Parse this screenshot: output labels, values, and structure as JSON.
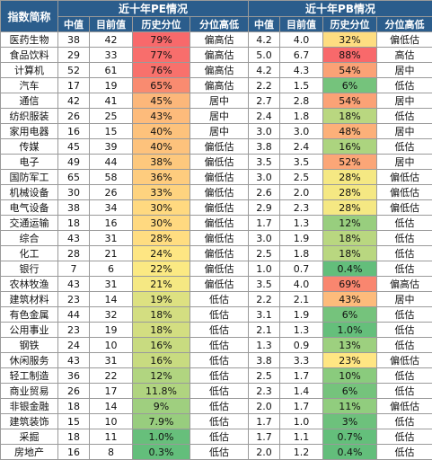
{
  "headers": {
    "index_name": "指数简称",
    "pe_group": "近十年PE情况",
    "pb_group": "近十年PB情况",
    "cols": [
      "中值",
      "目前值",
      "历史分位",
      "分位高低"
    ]
  },
  "colors": {
    "header_bg": "#2b5d8c",
    "header_text": "#ffffff",
    "high_pct": "#f8696b",
    "mid_pct": "#ffeb84",
    "low_pct": "#63be7b"
  },
  "rows": [
    {
      "name": "医药生物",
      "pe_mid": "38",
      "pe_cur": "42",
      "pe_pct": "79%",
      "pe_pct_bg": "#f8696b",
      "pe_lvl": "偏高估",
      "pb_mid": "4.2",
      "pb_cur": "4.0",
      "pb_pct": "32%",
      "pb_pct_bg": "#fedd81",
      "pb_lvl": "偏低估"
    },
    {
      "name": "食品饮料",
      "pe_mid": "29",
      "pe_cur": "33",
      "pe_pct": "77%",
      "pe_pct_bg": "#f86e6c",
      "pe_lvl": "偏高估",
      "pb_mid": "5.0",
      "pb_cur": "6.7",
      "pb_pct": "88%",
      "pb_pct_bg": "#f8696b",
      "pb_lvl": "高估"
    },
    {
      "name": "计算机",
      "pe_mid": "52",
      "pe_cur": "61",
      "pe_pct": "76%",
      "pe_pct_bg": "#f8716c",
      "pe_lvl": "偏高估",
      "pb_mid": "4.2",
      "pb_cur": "4.3",
      "pb_pct": "54%",
      "pb_pct_bg": "#fba276",
      "pb_lvl": "居中"
    },
    {
      "name": "汽车",
      "pe_mid": "17",
      "pe_cur": "19",
      "pe_pct": "65%",
      "pe_pct_bg": "#f98b70",
      "pe_lvl": "偏高估",
      "pb_mid": "2.2",
      "pb_cur": "1.5",
      "pb_pct": "6%",
      "pb_pct_bg": "#75c37c",
      "pb_lvl": "低估"
    },
    {
      "name": "通信",
      "pe_mid": "42",
      "pe_cur": "41",
      "pe_pct": "45%",
      "pe_pct_bg": "#fcb77a",
      "pe_lvl": "居中",
      "pb_mid": "2.7",
      "pb_cur": "2.8",
      "pb_pct": "54%",
      "pb_pct_bg": "#fba276",
      "pb_lvl": "居中"
    },
    {
      "name": "纺织服装",
      "pe_mid": "26",
      "pe_cur": "25",
      "pe_pct": "43%",
      "pe_pct_bg": "#fdbb7b",
      "pe_lvl": "居中",
      "pb_mid": "2.4",
      "pb_cur": "1.8",
      "pb_pct": "18%",
      "pb_pct_bg": "#b9d780",
      "pb_lvl": "低估"
    },
    {
      "name": "家用电器",
      "pe_mid": "16",
      "pe_cur": "15",
      "pe_pct": "40%",
      "pe_pct_bg": "#fdc27c",
      "pe_lvl": "居中",
      "pb_mid": "3.0",
      "pb_cur": "3.0",
      "pb_pct": "48%",
      "pb_pct_bg": "#fcb079",
      "pb_lvl": "居中"
    },
    {
      "name": "传媒",
      "pe_mid": "45",
      "pe_cur": "39",
      "pe_pct": "40%",
      "pe_pct_bg": "#fdc27c",
      "pe_lvl": "偏低估",
      "pb_mid": "3.8",
      "pb_cur": "2.4",
      "pb_pct": "16%",
      "pb_pct_bg": "#acd47f",
      "pb_lvl": "低估"
    },
    {
      "name": "电子",
      "pe_mid": "49",
      "pe_cur": "44",
      "pe_pct": "38%",
      "pe_pct_bg": "#fdc87d",
      "pe_lvl": "偏低估",
      "pb_mid": "3.5",
      "pb_cur": "3.5",
      "pb_pct": "52%",
      "pb_pct_bg": "#fba677",
      "pb_lvl": "居中"
    },
    {
      "name": "国防军工",
      "pe_mid": "65",
      "pe_cur": "58",
      "pe_pct": "36%",
      "pe_pct_bg": "#fecc7e",
      "pe_lvl": "偏低估",
      "pb_mid": "3.0",
      "pb_cur": "2.5",
      "pb_pct": "28%",
      "pb_pct_bg": "#f5e883",
      "pb_lvl": "偏低估"
    },
    {
      "name": "机械设备",
      "pe_mid": "30",
      "pe_cur": "26",
      "pe_pct": "33%",
      "pe_pct_bg": "#fed37f",
      "pe_lvl": "偏低估",
      "pb_mid": "2.6",
      "pb_cur": "2.0",
      "pb_pct": "28%",
      "pb_pct_bg": "#f5e883",
      "pb_lvl": "偏低估"
    },
    {
      "name": "电气设备",
      "pe_mid": "38",
      "pe_cur": "34",
      "pe_pct": "30%",
      "pe_pct_bg": "#ffd980",
      "pe_lvl": "偏低估",
      "pb_mid": "2.9",
      "pb_cur": "2.3",
      "pb_pct": "28%",
      "pb_pct_bg": "#f5e883",
      "pb_lvl": "偏低估"
    },
    {
      "name": "交通运输",
      "pe_mid": "18",
      "pe_cur": "16",
      "pe_pct": "30%",
      "pe_pct_bg": "#ffd980",
      "pe_lvl": "偏低估",
      "pb_mid": "1.7",
      "pb_cur": "1.3",
      "pb_pct": "12%",
      "pb_pct_bg": "#98ce7e",
      "pb_lvl": "低估"
    },
    {
      "name": "综合",
      "pe_mid": "43",
      "pe_cur": "31",
      "pe_pct": "28%",
      "pe_pct_bg": "#ffdd81",
      "pe_lvl": "偏低估",
      "pb_mid": "3.0",
      "pb_cur": "1.9",
      "pb_pct": "18%",
      "pb_pct_bg": "#b9d780",
      "pb_lvl": "低估"
    },
    {
      "name": "化工",
      "pe_mid": "28",
      "pe_cur": "21",
      "pe_pct": "24%",
      "pe_pct_bg": "#fee683",
      "pe_lvl": "偏低估",
      "pb_mid": "2.5",
      "pb_cur": "1.8",
      "pb_pct": "18%",
      "pb_pct_bg": "#b9d780",
      "pb_lvl": "低估"
    },
    {
      "name": "银行",
      "pe_mid": "7",
      "pe_cur": "6",
      "pe_pct": "22%",
      "pe_pct_bg": "#fbe983",
      "pe_lvl": "偏低估",
      "pb_mid": "1.0",
      "pb_cur": "0.7",
      "pb_pct": "0.4%",
      "pb_pct_bg": "#63be7b",
      "pb_lvl": "低估"
    },
    {
      "name": "农林牧渔",
      "pe_mid": "43",
      "pe_cur": "31",
      "pe_pct": "21%",
      "pe_pct_bg": "#f5e883",
      "pe_lvl": "偏低估",
      "pb_mid": "3.5",
      "pb_cur": "4.0",
      "pb_pct": "69%",
      "pb_pct_bg": "#f9866f",
      "pb_lvl": "偏高估"
    },
    {
      "name": "建筑材料",
      "pe_mid": "23",
      "pe_cur": "14",
      "pe_pct": "19%",
      "pe_pct_bg": "#dde181",
      "pe_lvl": "低估",
      "pb_mid": "2.2",
      "pb_cur": "2.1",
      "pb_pct": "43%",
      "pb_pct_bg": "#fdbb7b",
      "pb_lvl": "居中"
    },
    {
      "name": "有色金属",
      "pe_mid": "44",
      "pe_cur": "32",
      "pe_pct": "18%",
      "pe_pct_bg": "#d3de81",
      "pe_lvl": "低估",
      "pb_mid": "3.1",
      "pb_cur": "1.9",
      "pb_pct": "6%",
      "pb_pct_bg": "#75c37c",
      "pb_lvl": "低估"
    },
    {
      "name": "公用事业",
      "pe_mid": "23",
      "pe_cur": "19",
      "pe_pct": "18%",
      "pe_pct_bg": "#d3de81",
      "pe_lvl": "低估",
      "pb_mid": "2.1",
      "pb_cur": "1.3",
      "pb_pct": "1.0%",
      "pb_pct_bg": "#65bf7b",
      "pb_lvl": "低估"
    },
    {
      "name": "钢铁",
      "pe_mid": "24",
      "pe_cur": "10",
      "pe_pct": "16%",
      "pe_pct_bg": "#c8db80",
      "pe_lvl": "低估",
      "pb_mid": "1.3",
      "pb_cur": "0.9",
      "pb_pct": "13%",
      "pb_pct_bg": "#9dd07f",
      "pb_lvl": "低估"
    },
    {
      "name": "休闲服务",
      "pe_mid": "43",
      "pe_cur": "31",
      "pe_pct": "16%",
      "pe_pct_bg": "#c8db80",
      "pe_lvl": "低估",
      "pb_mid": "3.8",
      "pb_cur": "3.3",
      "pb_pct": "23%",
      "pb_pct_bg": "#ffe683",
      "pb_lvl": "偏低估"
    },
    {
      "name": "轻工制造",
      "pe_mid": "36",
      "pe_cur": "22",
      "pe_pct": "12%",
      "pe_pct_bg": "#b1d580",
      "pe_lvl": "低估",
      "pb_mid": "2.5",
      "pb_cur": "1.7",
      "pb_pct": "10%",
      "pb_pct_bg": "#8acb7d",
      "pb_lvl": "低估"
    },
    {
      "name": "商业贸易",
      "pe_mid": "26",
      "pe_cur": "17",
      "pe_pct": "11.8%",
      "pe_pct_bg": "#b0d480",
      "pe_lvl": "低估",
      "pb_mid": "2.3",
      "pb_cur": "1.4",
      "pb_pct": "6%",
      "pb_pct_bg": "#75c37c",
      "pb_lvl": "低估"
    },
    {
      "name": "非银金融",
      "pe_mid": "18",
      "pe_cur": "14",
      "pe_pct": "9%",
      "pe_pct_bg": "#9fcf7f",
      "pe_lvl": "低估",
      "pb_mid": "2.0",
      "pb_cur": "1.7",
      "pb_pct": "11%",
      "pb_pct_bg": "#91cd7e",
      "pb_lvl": "偏低估"
    },
    {
      "name": "建筑装饰",
      "pe_mid": "15",
      "pe_cur": "10",
      "pe_pct": "7.9%",
      "pe_pct_bg": "#98cd7e",
      "pe_lvl": "低估",
      "pb_mid": "1.7",
      "pb_cur": "1.0",
      "pb_pct": "3%",
      "pb_pct_bg": "#6dc17c",
      "pb_lvl": "低估"
    },
    {
      "name": "采掘",
      "pe_mid": "18",
      "pe_cur": "11",
      "pe_pct": "1.0%",
      "pe_pct_bg": "#67bf7b",
      "pe_lvl": "低估",
      "pb_mid": "1.7",
      "pb_cur": "1.1",
      "pb_pct": "0.7%",
      "pb_pct_bg": "#64bf7b",
      "pb_lvl": "低估"
    },
    {
      "name": "房地产",
      "pe_mid": "16",
      "pe_cur": "8",
      "pe_pct": "0.3%",
      "pe_pct_bg": "#63be7b",
      "pe_lvl": "低估",
      "pb_mid": "2.0",
      "pb_cur": "1.2",
      "pb_pct": "0.4%",
      "pb_pct_bg": "#63be7b",
      "pb_lvl": "低估"
    }
  ]
}
